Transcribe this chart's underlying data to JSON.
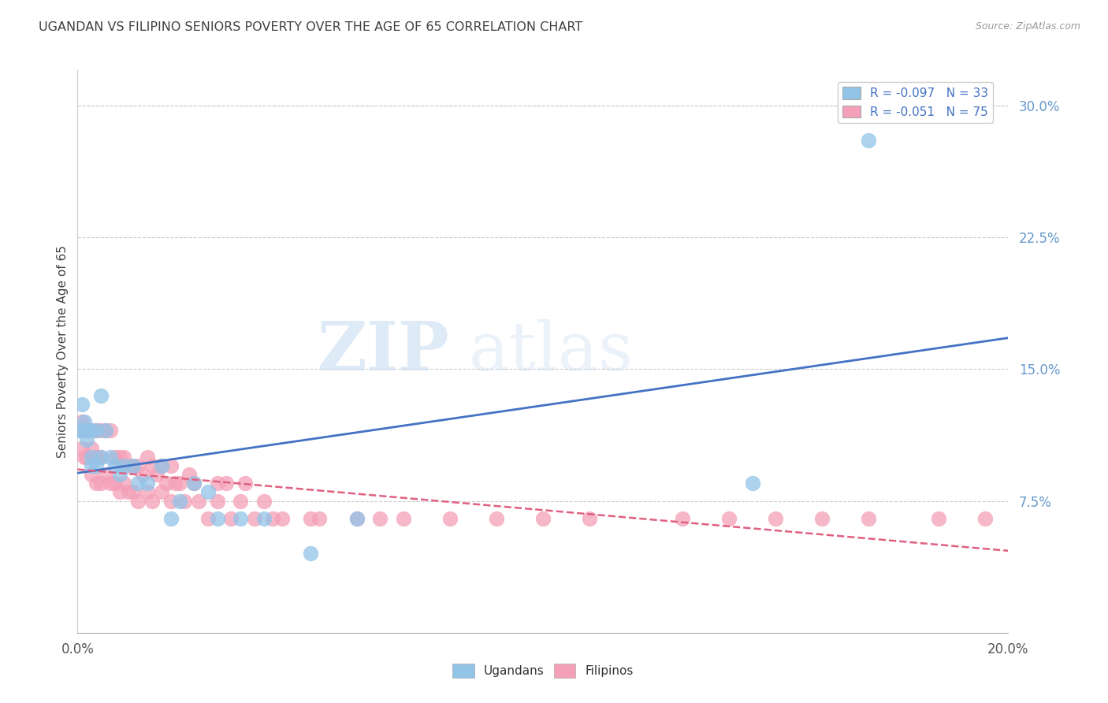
{
  "title": "UGANDAN VS FILIPINO SENIORS POVERTY OVER THE AGE OF 65 CORRELATION CHART",
  "source": "Source: ZipAtlas.com",
  "ylabel": "Seniors Poverty Over the Age of 65",
  "xlim": [
    0.0,
    0.2
  ],
  "ylim": [
    0.0,
    0.32
  ],
  "yticks_right": [
    0.075,
    0.15,
    0.225,
    0.3
  ],
  "ytick_labels_right": [
    "7.5%",
    "15.0%",
    "22.5%",
    "30.0%"
  ],
  "xticks": [
    0.0,
    0.025,
    0.05,
    0.075,
    0.1,
    0.125,
    0.15,
    0.175,
    0.2
  ],
  "xtick_labels_show": {
    "0.0": "0.0%",
    "0.20": "20.0%"
  },
  "ugandan_R": -0.097,
  "ugandan_N": 33,
  "filipino_R": -0.051,
  "filipino_N": 75,
  "ugandan_color": "#92C4E8",
  "filipino_color": "#F4A0B8",
  "ugandan_line_color": "#4472C4",
  "filipino_line_color": "#E06080",
  "background_color": "#FFFFFF",
  "watermark_zip_color": "#C8DCF0",
  "watermark_atlas_color": "#C8DCF0",
  "legend_label_ugandan": "Ugandans",
  "legend_label_filipino": "Filipinos",
  "ugandan_x": [
    0.0005,
    0.001,
    0.001,
    0.0015,
    0.002,
    0.002,
    0.003,
    0.003,
    0.003,
    0.004,
    0.004,
    0.005,
    0.005,
    0.006,
    0.007,
    0.008,
    0.009,
    0.01,
    0.012,
    0.013,
    0.015,
    0.018,
    0.02,
    0.022,
    0.025,
    0.028,
    0.03,
    0.035,
    0.04,
    0.05,
    0.06,
    0.145,
    0.17
  ],
  "ugandan_y": [
    0.115,
    0.13,
    0.115,
    0.12,
    0.115,
    0.11,
    0.115,
    0.1,
    0.095,
    0.115,
    0.095,
    0.135,
    0.1,
    0.115,
    0.1,
    0.095,
    0.09,
    0.095,
    0.095,
    0.085,
    0.085,
    0.095,
    0.065,
    0.075,
    0.085,
    0.08,
    0.065,
    0.065,
    0.065,
    0.045,
    0.065,
    0.085,
    0.28
  ],
  "filipino_x": [
    0.0005,
    0.001,
    0.001,
    0.0015,
    0.002,
    0.002,
    0.003,
    0.003,
    0.003,
    0.004,
    0.004,
    0.004,
    0.005,
    0.005,
    0.005,
    0.006,
    0.006,
    0.007,
    0.007,
    0.008,
    0.008,
    0.009,
    0.009,
    0.01,
    0.01,
    0.011,
    0.011,
    0.012,
    0.012,
    0.013,
    0.013,
    0.014,
    0.015,
    0.015,
    0.016,
    0.016,
    0.017,
    0.018,
    0.018,
    0.019,
    0.02,
    0.02,
    0.021,
    0.022,
    0.023,
    0.024,
    0.025,
    0.026,
    0.028,
    0.03,
    0.03,
    0.032,
    0.033,
    0.035,
    0.036,
    0.038,
    0.04,
    0.042,
    0.044,
    0.05,
    0.052,
    0.06,
    0.065,
    0.07,
    0.08,
    0.09,
    0.1,
    0.11,
    0.13,
    0.14,
    0.15,
    0.16,
    0.17,
    0.185,
    0.195
  ],
  "filipino_y": [
    0.115,
    0.12,
    0.105,
    0.1,
    0.115,
    0.1,
    0.115,
    0.105,
    0.09,
    0.115,
    0.1,
    0.085,
    0.115,
    0.1,
    0.085,
    0.115,
    0.09,
    0.115,
    0.085,
    0.1,
    0.085,
    0.1,
    0.08,
    0.1,
    0.085,
    0.095,
    0.08,
    0.095,
    0.08,
    0.095,
    0.075,
    0.09,
    0.1,
    0.08,
    0.095,
    0.075,
    0.09,
    0.095,
    0.08,
    0.085,
    0.095,
    0.075,
    0.085,
    0.085,
    0.075,
    0.09,
    0.085,
    0.075,
    0.065,
    0.085,
    0.075,
    0.085,
    0.065,
    0.075,
    0.085,
    0.065,
    0.075,
    0.065,
    0.065,
    0.065,
    0.065,
    0.065,
    0.065,
    0.065,
    0.065,
    0.065,
    0.065,
    0.065,
    0.065,
    0.065,
    0.065,
    0.065,
    0.065,
    0.065,
    0.065
  ]
}
